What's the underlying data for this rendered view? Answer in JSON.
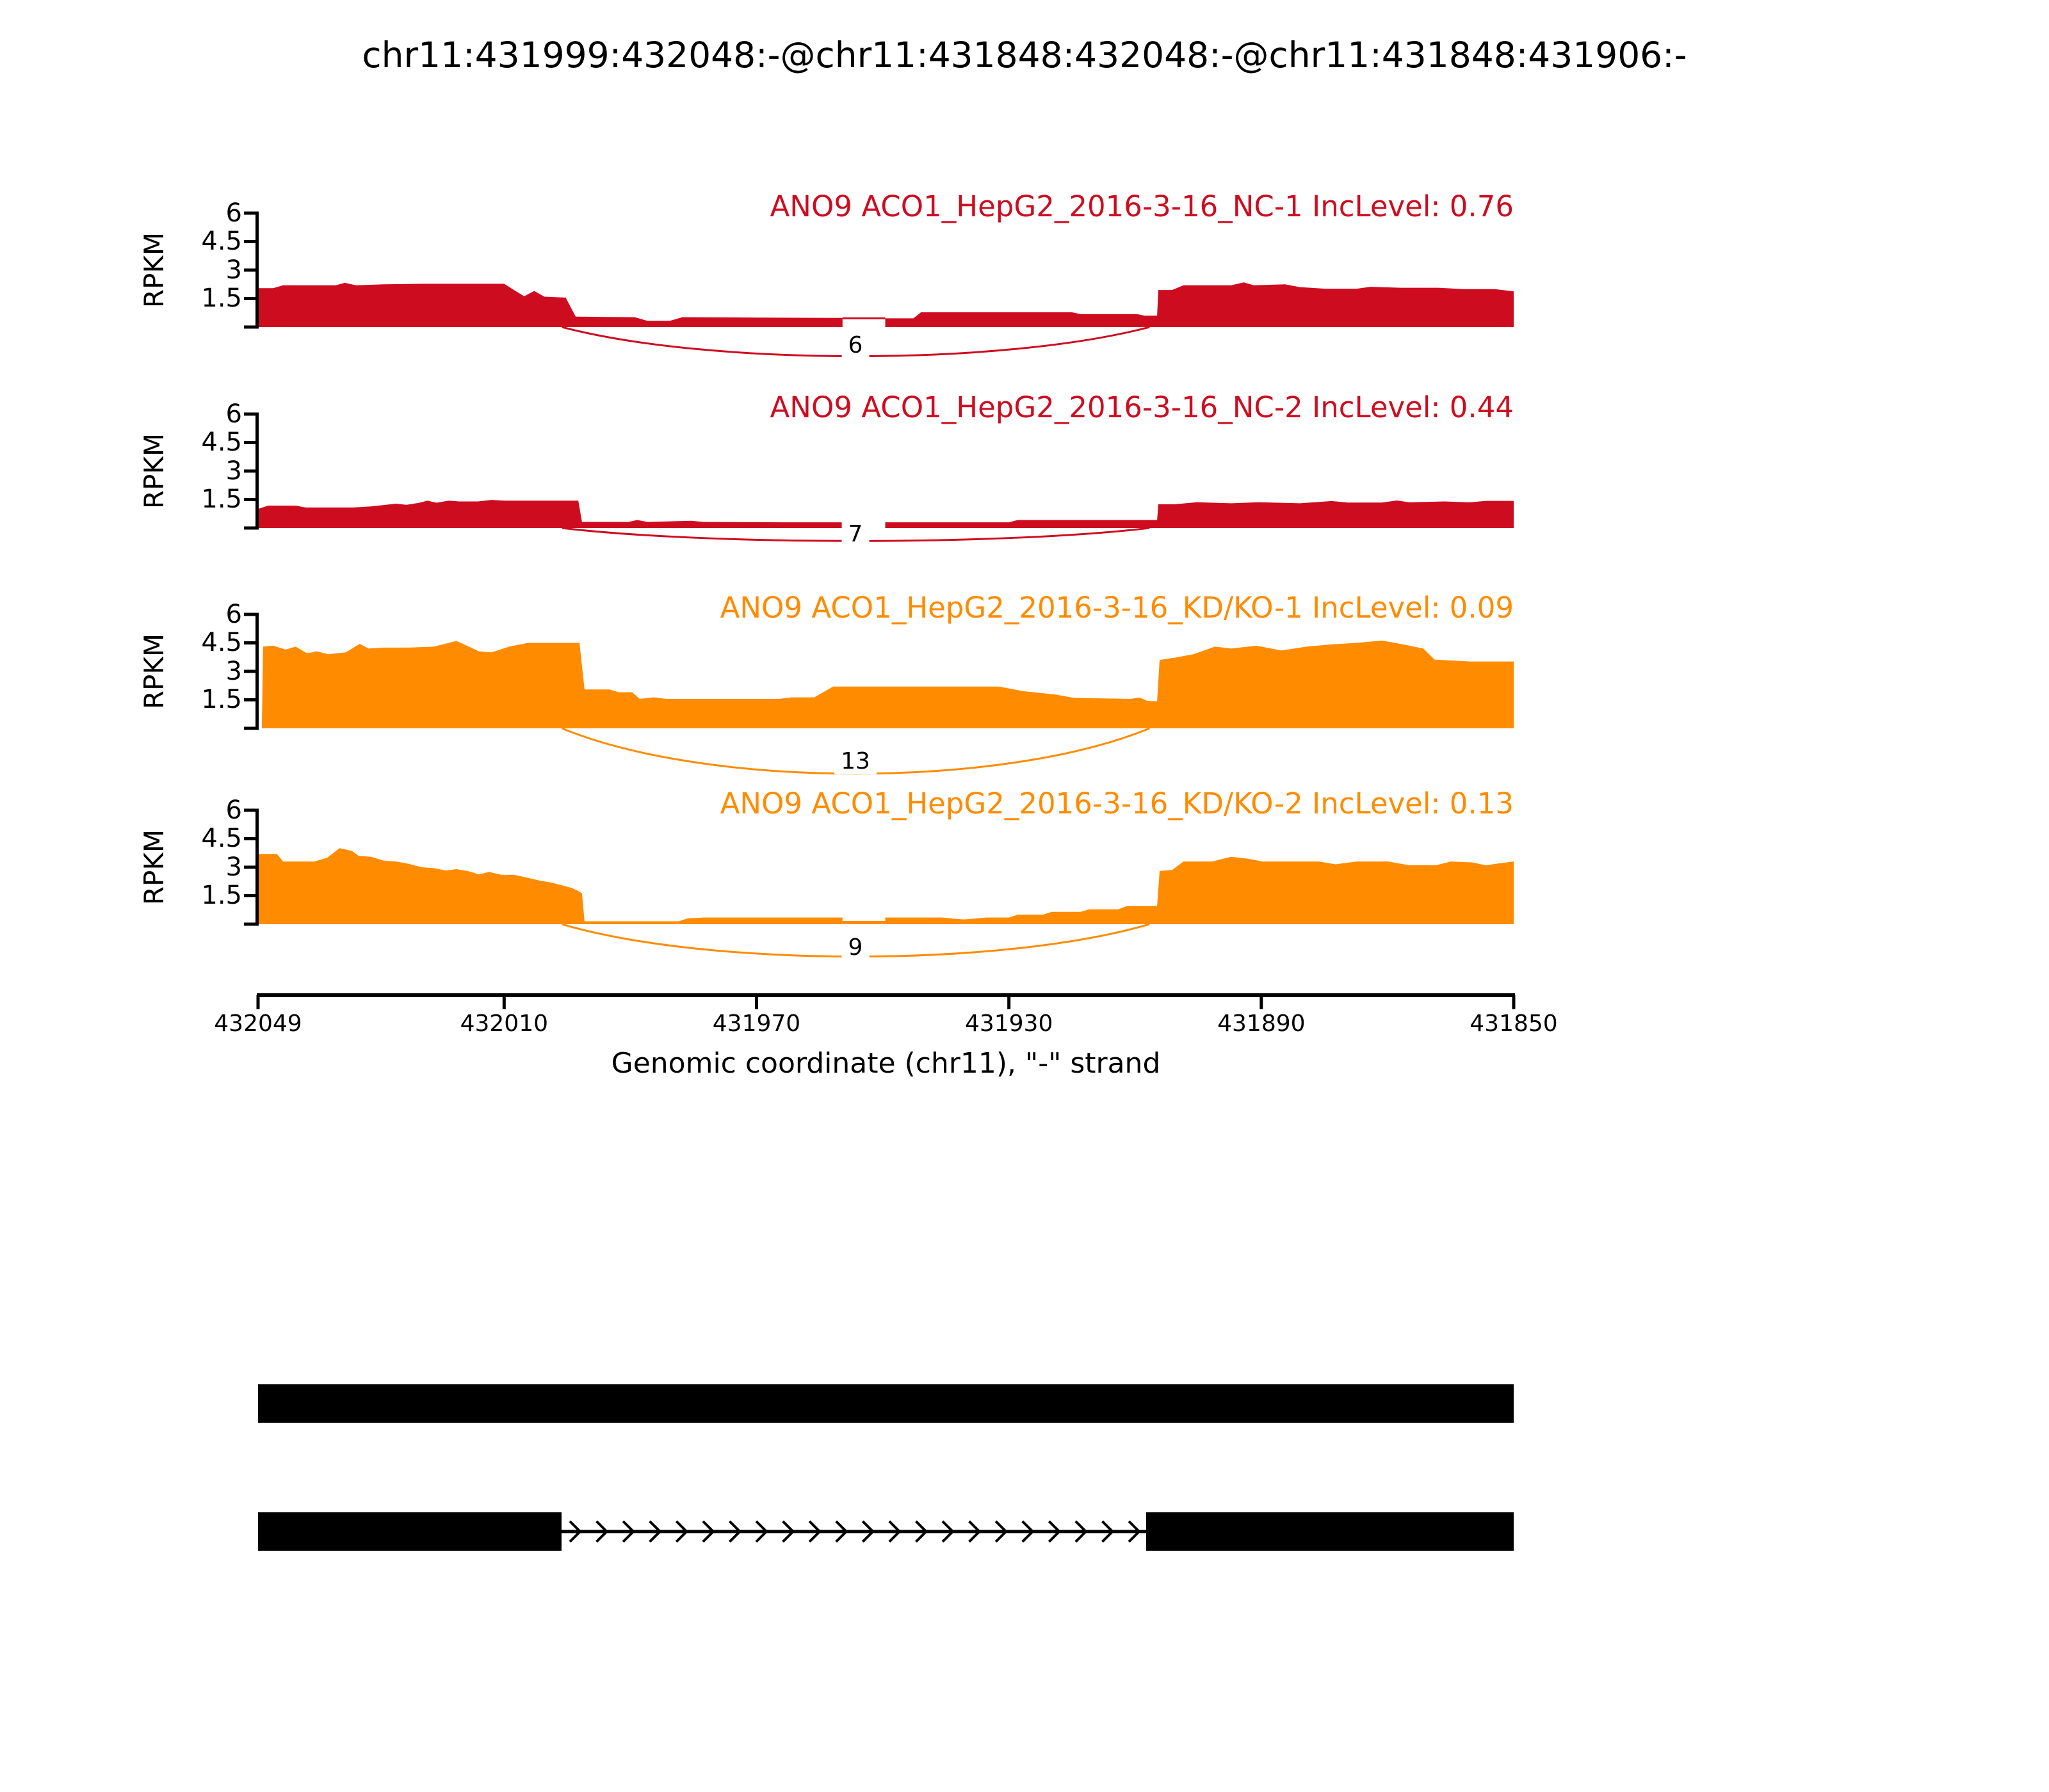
{
  "figure": {
    "background": "#ffffff"
  },
  "chart_data": {
    "type": "area",
    "title": "chr11:431999:432048:-@chr11:431848:432048:-@chr11:431848:431906:-",
    "xlabel": "Genomic coordinate (chr11), \"-\" strand",
    "ylabel": "RPKM",
    "region": {
      "chromosome": "chr11",
      "view_start": 432049,
      "view_end": 431850,
      "strand": "-"
    },
    "ylim": [
      0,
      6
    ],
    "y_ticks": {
      "labels": [
        "6",
        "4.5",
        "3",
        "1.5"
      ],
      "values": [
        6,
        4.5,
        3,
        1.5
      ],
      "mark_values": [
        0,
        1.5,
        3,
        4.5,
        6
      ]
    },
    "x_ticks": [
      {
        "label": "432049",
        "position": 432049
      },
      {
        "label": "432010",
        "position": 432010
      },
      {
        "label": "431970",
        "position": 431970
      },
      {
        "label": "431930",
        "position": 431930
      },
      {
        "label": "431890",
        "position": 431890
      },
      {
        "label": "431850",
        "position": 431850
      }
    ],
    "colors": {
      "group1": "#CE0C20",
      "group2": "#FF8B00",
      "structure": "#000000"
    },
    "tracks": [
      {
        "label": "ANO9 ACO1_HepG2_2016-3-16_NC-1 IncLevel: 0.76",
        "sample": "NC-1",
        "inc_level": 0.76,
        "color": "#CE0C20",
        "junction_label": "6",
        "junction_reads": 6,
        "junction": {
          "from_frac": 0.242,
          "to_frac": 0.71
        },
        "gap_frac": [
          0.4655,
          0.4995
        ],
        "connector_rpkm": 0.46,
        "under_strip": false,
        "coverage_segments": [
          [
            [
              0,
              0
            ],
            [
              0,
              2.05
            ],
            [
              0.012,
              2.05
            ],
            [
              0.02,
              2.2
            ],
            [
              0.062,
              2.2
            ],
            [
              0.069,
              2.33
            ],
            [
              0.078,
              2.2
            ],
            [
              0.1,
              2.25
            ],
            [
              0.13,
              2.28
            ],
            [
              0.196,
              2.28
            ],
            [
              0.205,
              1.9
            ],
            [
              0.212,
              1.62
            ],
            [
              0.22,
              1.9
            ],
            [
              0.228,
              1.6
            ],
            [
              0.245,
              1.55
            ],
            [
              0.253,
              0.55
            ],
            [
              0.3,
              0.52
            ],
            [
              0.31,
              0.33
            ],
            [
              0.328,
              0.33
            ],
            [
              0.338,
              0.52
            ],
            [
              0.4,
              0.5
            ],
            [
              0.4655,
              0.48
            ],
            [
              0.4655,
              0
            ]
          ],
          [
            [
              0.4995,
              0
            ],
            [
              0.4995,
              0.46
            ],
            [
              0.522,
              0.46
            ],
            [
              0.528,
              0.78
            ],
            [
              0.648,
              0.78
            ],
            [
              0.655,
              0.68
            ],
            [
              0.7,
              0.68
            ],
            [
              0.706,
              0.6
            ],
            [
              0.716,
              0.6
            ],
            [
              0.717,
              1.95
            ],
            [
              0.728,
              1.95
            ],
            [
              0.737,
              2.2
            ],
            [
              0.775,
              2.2
            ],
            [
              0.785,
              2.35
            ],
            [
              0.793,
              2.2
            ],
            [
              0.818,
              2.25
            ],
            [
              0.83,
              2.1
            ],
            [
              0.85,
              2.02
            ],
            [
              0.875,
              2.02
            ],
            [
              0.886,
              2.12
            ],
            [
              0.91,
              2.07
            ],
            [
              0.94,
              2.07
            ],
            [
              0.96,
              2.0
            ],
            [
              0.985,
              2.0
            ],
            [
              1,
              1.88
            ],
            [
              1,
              0
            ]
          ]
        ]
      },
      {
        "label": "ANO9 ACO1_HepG2_2016-3-16_NC-2 IncLevel: 0.44",
        "sample": "NC-2",
        "inc_level": 0.44,
        "color": "#CE0C20",
        "junction_label": "7",
        "junction_reads": 7,
        "junction": {
          "from_frac": 0.242,
          "to_frac": 0.71
        },
        "gap_frac": [
          0.4655,
          0.4995
        ],
        "connector_rpkm": null,
        "under_strip": false,
        "coverage_segments": [
          [
            [
              0,
              0
            ],
            [
              0,
              1.0
            ],
            [
              0.008,
              1.18
            ],
            [
              0.03,
              1.18
            ],
            [
              0.038,
              1.08
            ],
            [
              0.075,
              1.08
            ],
            [
              0.09,
              1.14
            ],
            [
              0.11,
              1.28
            ],
            [
              0.118,
              1.22
            ],
            [
              0.128,
              1.32
            ],
            [
              0.135,
              1.44
            ],
            [
              0.142,
              1.33
            ],
            [
              0.152,
              1.44
            ],
            [
              0.16,
              1.4
            ],
            [
              0.175,
              1.4
            ],
            [
              0.186,
              1.48
            ],
            [
              0.196,
              1.44
            ],
            [
              0.255,
              1.44
            ],
            [
              0.258,
              0.32
            ],
            [
              0.295,
              0.32
            ],
            [
              0.302,
              0.42
            ],
            [
              0.31,
              0.32
            ],
            [
              0.345,
              0.38
            ],
            [
              0.355,
              0.32
            ],
            [
              0.42,
              0.3
            ],
            [
              0.4655,
              0.3
            ],
            [
              0.4655,
              0
            ]
          ],
          [
            [
              0.4995,
              0
            ],
            [
              0.4995,
              0.3
            ],
            [
              0.598,
              0.3
            ],
            [
              0.605,
              0.42
            ],
            [
              0.716,
              0.42
            ],
            [
              0.717,
              1.25
            ],
            [
              0.73,
              1.25
            ],
            [
              0.748,
              1.36
            ],
            [
              0.775,
              1.3
            ],
            [
              0.797,
              1.36
            ],
            [
              0.83,
              1.3
            ],
            [
              0.855,
              1.42
            ],
            [
              0.868,
              1.34
            ],
            [
              0.895,
              1.34
            ],
            [
              0.907,
              1.45
            ],
            [
              0.917,
              1.35
            ],
            [
              0.945,
              1.4
            ],
            [
              0.965,
              1.35
            ],
            [
              0.978,
              1.43
            ],
            [
              1,
              1.43
            ],
            [
              1,
              0
            ]
          ]
        ]
      },
      {
        "label": "ANO9 ACO1_HepG2_2016-3-16_KD/KO-1 IncLevel: 0.09",
        "sample": "KD/KO-1",
        "inc_level": 0.09,
        "color": "#FF8B00",
        "junction_label": "13",
        "junction_reads": 13,
        "junction": {
          "from_frac": 0.242,
          "to_frac": 0.71
        },
        "gap_frac": null,
        "connector_rpkm": null,
        "under_strip": false,
        "coverage_segments": [
          [
            [
              0.003,
              0
            ],
            [
              0.004,
              4.3
            ],
            [
              0.012,
              4.35
            ],
            [
              0.022,
              4.15
            ],
            [
              0.03,
              4.3
            ],
            [
              0.039,
              3.95
            ],
            [
              0.047,
              4.05
            ],
            [
              0.056,
              3.9
            ],
            [
              0.07,
              4.0
            ],
            [
              0.081,
              4.45
            ],
            [
              0.088,
              4.2
            ],
            [
              0.1,
              4.25
            ],
            [
              0.12,
              4.25
            ],
            [
              0.14,
              4.3
            ],
            [
              0.158,
              4.6
            ],
            [
              0.168,
              4.3
            ],
            [
              0.176,
              4.05
            ],
            [
              0.186,
              4.0
            ],
            [
              0.2,
              4.3
            ],
            [
              0.215,
              4.5
            ],
            [
              0.256,
              4.5
            ],
            [
              0.26,
              2.05
            ],
            [
              0.28,
              2.05
            ],
            [
              0.287,
              1.9
            ],
            [
              0.298,
              1.9
            ],
            [
              0.304,
              1.55
            ],
            [
              0.315,
              1.63
            ],
            [
              0.325,
              1.55
            ],
            [
              0.415,
              1.55
            ],
            [
              0.425,
              1.63
            ],
            [
              0.443,
              1.63
            ],
            [
              0.458,
              2.2
            ],
            [
              0.59,
              2.2
            ],
            [
              0.61,
              1.95
            ],
            [
              0.635,
              1.78
            ],
            [
              0.65,
              1.6
            ],
            [
              0.695,
              1.55
            ],
            [
              0.702,
              1.62
            ],
            [
              0.708,
              1.45
            ],
            [
              0.716,
              1.42
            ],
            [
              0.718,
              3.6
            ],
            [
              0.73,
              3.72
            ],
            [
              0.745,
              3.9
            ],
            [
              0.762,
              4.3
            ],
            [
              0.775,
              4.2
            ],
            [
              0.795,
              4.35
            ],
            [
              0.815,
              4.1
            ],
            [
              0.835,
              4.3
            ],
            [
              0.855,
              4.42
            ],
            [
              0.875,
              4.5
            ],
            [
              0.895,
              4.62
            ],
            [
              0.912,
              4.42
            ],
            [
              0.928,
              4.2
            ],
            [
              0.937,
              3.62
            ],
            [
              0.965,
              3.52
            ],
            [
              1,
              3.52
            ],
            [
              1,
              0
            ]
          ]
        ]
      },
      {
        "label": "ANO9 ACO1_HepG2_2016-3-16_KD/KO-2 IncLevel: 0.13",
        "sample": "KD/KO-2",
        "inc_level": 0.13,
        "color": "#FF8B00",
        "junction_label": "9",
        "junction_reads": 9,
        "junction": {
          "from_frac": 0.242,
          "to_frac": 0.71
        },
        "gap_frac": [
          0.4655,
          0.4995
        ],
        "connector_rpkm": null,
        "under_strip": true,
        "coverage_segments": [
          [
            [
              0,
              0
            ],
            [
              0,
              3.7
            ],
            [
              0.015,
              3.7
            ],
            [
              0.02,
              3.3
            ],
            [
              0.045,
              3.3
            ],
            [
              0.055,
              3.5
            ],
            [
              0.065,
              4.0
            ],
            [
              0.075,
              3.85
            ],
            [
              0.08,
              3.6
            ],
            [
              0.09,
              3.55
            ],
            [
              0.1,
              3.35
            ],
            [
              0.11,
              3.3
            ],
            [
              0.12,
              3.18
            ],
            [
              0.13,
              3.0
            ],
            [
              0.14,
              2.95
            ],
            [
              0.15,
              2.82
            ],
            [
              0.158,
              2.9
            ],
            [
              0.168,
              2.78
            ],
            [
              0.176,
              2.62
            ],
            [
              0.184,
              2.75
            ],
            [
              0.194,
              2.6
            ],
            [
              0.204,
              2.6
            ],
            [
              0.214,
              2.45
            ],
            [
              0.224,
              2.3
            ],
            [
              0.234,
              2.18
            ],
            [
              0.242,
              2.05
            ],
            [
              0.25,
              1.9
            ],
            [
              0.255,
              1.75
            ],
            [
              0.258,
              1.62
            ],
            [
              0.26,
              0.15
            ],
            [
              0.335,
              0.15
            ],
            [
              0.342,
              0.3
            ],
            [
              0.355,
              0.35
            ],
            [
              0.4655,
              0.35
            ],
            [
              0.4655,
              0
            ]
          ],
          [
            [
              0.4995,
              0
            ],
            [
              0.4995,
              0.35
            ],
            [
              0.545,
              0.35
            ],
            [
              0.552,
              0.3
            ],
            [
              0.562,
              0.25
            ],
            [
              0.572,
              0.3
            ],
            [
              0.58,
              0.35
            ],
            [
              0.598,
              0.35
            ],
            [
              0.605,
              0.5
            ],
            [
              0.625,
              0.5
            ],
            [
              0.632,
              0.65
            ],
            [
              0.655,
              0.65
            ],
            [
              0.662,
              0.78
            ],
            [
              0.685,
              0.78
            ],
            [
              0.692,
              0.95
            ],
            [
              0.716,
              0.95
            ],
            [
              0.718,
              2.8
            ],
            [
              0.728,
              2.85
            ],
            [
              0.737,
              3.3
            ],
            [
              0.76,
              3.3
            ],
            [
              0.775,
              3.55
            ],
            [
              0.788,
              3.45
            ],
            [
              0.8,
              3.3
            ],
            [
              0.845,
              3.3
            ],
            [
              0.858,
              3.15
            ],
            [
              0.875,
              3.3
            ],
            [
              0.9,
              3.3
            ],
            [
              0.917,
              3.1
            ],
            [
              0.938,
              3.1
            ],
            [
              0.95,
              3.3
            ],
            [
              0.967,
              3.25
            ],
            [
              0.978,
              3.1
            ],
            [
              0.988,
              3.2
            ],
            [
              1,
              3.3
            ],
            [
              1,
              0
            ]
          ]
        ]
      }
    ],
    "structure": {
      "bars": [
        {
          "exon_blocks_frac": [
            [
              0,
              1
            ]
          ]
        },
        {
          "exon_blocks_frac": [
            [
              0,
              0.2417
            ],
            [
              0.7073,
              1
            ]
          ],
          "intron": {
            "from_frac": 0.2417,
            "to_frac": 0.7073,
            "arrow_direction": "right",
            "arrow_count": 22
          }
        }
      ]
    }
  }
}
